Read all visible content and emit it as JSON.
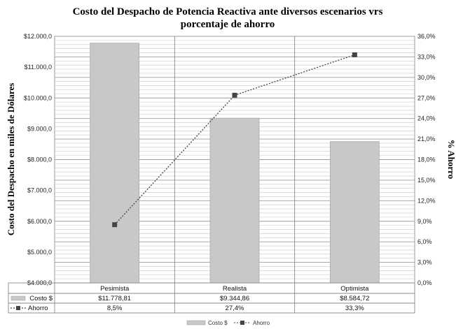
{
  "chart_data": {
    "type": "bar",
    "title_lines": [
      "Costo del Despacho de Potencia Reactiva ante diversos escenarios vrs",
      "porcentaje de ahorro"
    ],
    "categories": [
      "Pesimista",
      "Realista",
      "Optimista"
    ],
    "ylabel": "Costo del Despacho en miles de Dólares",
    "y2label": "% Ahorro",
    "ylim": [
      4000,
      12000
    ],
    "y2lim": [
      0,
      36
    ],
    "yticks": [
      "$4.000,0",
      "$5.000,0",
      "$6.000,0",
      "$7.000,0",
      "$8.000,0",
      "$9.000,0",
      "$10.000,0",
      "$11.000,0",
      "$12.000,0"
    ],
    "y2ticks": [
      "0,0%",
      "3,0%",
      "6,0%",
      "9,0%",
      "12,0%",
      "15,0%",
      "18,0%",
      "21,0%",
      "24,0%",
      "27,0%",
      "30,0%",
      "33,0%",
      "36,0%"
    ],
    "grid": true,
    "legend_position": "bottom",
    "series": [
      {
        "name": "Costo $",
        "type": "bar",
        "axis": "left",
        "values": [
          11778.81,
          9344.86,
          8584.72
        ],
        "labels": [
          "$11.778,81",
          "$9.344,86",
          "$8.584,72"
        ],
        "color": "#c8c8c8"
      },
      {
        "name": "Ahorro",
        "type": "line",
        "axis": "right",
        "values": [
          8.5,
          27.4,
          33.3
        ],
        "labels": [
          "8,5%",
          "27,4%",
          "33,3%"
        ],
        "color": "#444444"
      }
    ]
  }
}
